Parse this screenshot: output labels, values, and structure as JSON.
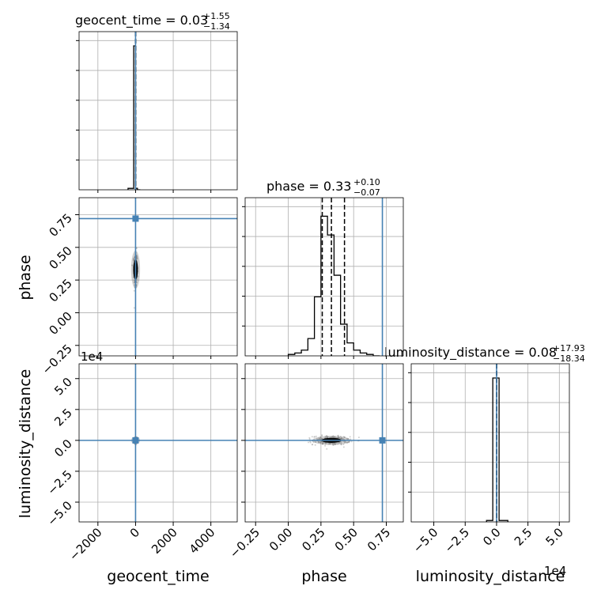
{
  "chart_data": {
    "type": "corner",
    "parameters": [
      "geocent_time",
      "phase",
      "luminosity_distance"
    ],
    "truths": {
      "geocent_time": 0,
      "phase": 0.72,
      "luminosity_distance": 0
    },
    "truth_color": "#4682b4",
    "panels": {
      "geocent_time": {
        "title": "geocent_time = 0.03",
        "title_sup": "+1.55",
        "title_sub": "−1.34",
        "xlim": [
          -3000,
          5400
        ],
        "xticks": [
          -2000,
          0,
          2000,
          4000
        ],
        "xtick_labels": [
          "−2000",
          "0",
          "2000",
          "4000"
        ],
        "quantiles": [
          -1.31,
          0.03,
          1.58
        ],
        "histogram": {
          "bin_edges": [
            -400,
            -100,
            0,
            100,
            250
          ],
          "heights": [
            0.01,
            1.0,
            0.01,
            0.0
          ]
        }
      },
      "phase": {
        "title": "phase = 0.33",
        "title_sup": "+0.10",
        "title_sub": "−0.07",
        "xlim": [
          -0.33,
          0.88
        ],
        "xticks": [
          -0.25,
          0.0,
          0.25,
          0.5,
          0.75
        ],
        "xtick_labels": [
          "−0.25",
          "0.00",
          "0.25",
          "0.50",
          "0.75"
        ],
        "quantiles": [
          0.26,
          0.33,
          0.43
        ],
        "histogram": {
          "bin_edges": [
            0.0,
            0.05,
            0.1,
            0.15,
            0.2,
            0.25,
            0.3,
            0.35,
            0.4,
            0.45,
            0.5,
            0.55,
            0.6,
            0.65,
            0.7
          ],
          "heights": [
            0.01,
            0.02,
            0.04,
            0.12,
            0.41,
            0.97,
            0.84,
            0.56,
            0.22,
            0.09,
            0.04,
            0.02,
            0.01,
            0.0
          ]
        }
      },
      "luminosity_distance": {
        "title": "luminosity_distance = 0.08",
        "title_sup": "+17.93",
        "title_sub": "−18.34",
        "xlim": [
          -68000,
          58000
        ],
        "xticks": [
          -50000,
          -25000,
          0,
          25000,
          50000
        ],
        "xtick_labels": [
          "−5.0",
          "−2.5",
          "0.0",
          "2.5",
          "5.0"
        ],
        "offset_label": "1e4",
        "quantiles": [
          -18.26,
          0.08,
          18.01
        ],
        "histogram": {
          "bin_edges": [
            -8000,
            -3000,
            2000,
            9000
          ],
          "heights": [
            0.01,
            1.0,
            0.01
          ]
        }
      }
    },
    "phase_yaxis": {
      "ylim": [
        -0.33,
        0.88
      ],
      "yticks": [
        -0.25,
        0.0,
        0.25,
        0.5,
        0.75
      ],
      "ytick_labels": [
        "−0.25",
        "0.00",
        "0.25",
        "0.50",
        "0.75"
      ]
    },
    "luminosity_distance_yaxis": {
      "ylim": [
        -66000,
        62000
      ],
      "yticks": [
        -50000,
        -25000,
        0,
        25000,
        50000
      ],
      "ytick_labels": [
        "−5.0",
        "−2.5",
        "0.0",
        "2.5",
        "5.0"
      ],
      "offset_label": "1e4"
    },
    "posterior_samples": {
      "geocent_time_vs_phase": {
        "center": [
          0,
          0.33
        ],
        "spread": [
          45,
          0.07
        ]
      },
      "geocent_time_vs_luminosity_distance": {
        "center": [
          0,
          0
        ],
        "spread": [
          35,
          1200
        ]
      },
      "phase_vs_luminosity_distance": {
        "center": [
          0.33,
          0
        ],
        "spread": [
          0.07,
          1800
        ]
      }
    },
    "axis_labels": {
      "x": [
        "geocent_time",
        "phase",
        "luminosity_distance"
      ],
      "y": [
        "phase",
        "luminosity_distance"
      ]
    },
    "grid": true
  }
}
